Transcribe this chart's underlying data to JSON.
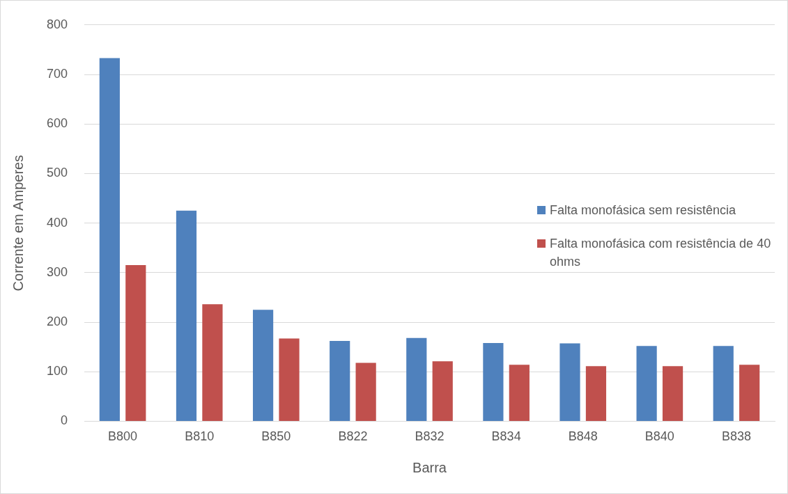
{
  "chart_data": {
    "type": "bar",
    "xlabel": "Barra",
    "ylabel": "Corrente em Amperes",
    "categories": [
      "B800",
      "B810",
      "B850",
      "B822",
      "B832",
      "B834",
      "B848",
      "B840",
      "B838"
    ],
    "series": [
      {
        "name": "Falta monofásica sem resistência",
        "color": "#4f81bd",
        "values": [
          733,
          425,
          225,
          162,
          168,
          158,
          157,
          152,
          152
        ]
      },
      {
        "name": "Falta monofásica com resistência de 40 ohms",
        "color": "#c0504d",
        "values": [
          315,
          236,
          167,
          118,
          121,
          114,
          111,
          111,
          114
        ]
      }
    ],
    "ylim": [
      0,
      800
    ],
    "yticks": [
      0,
      100,
      200,
      300,
      400,
      500,
      600,
      700,
      800
    ],
    "grid": "y",
    "legend": "right"
  }
}
